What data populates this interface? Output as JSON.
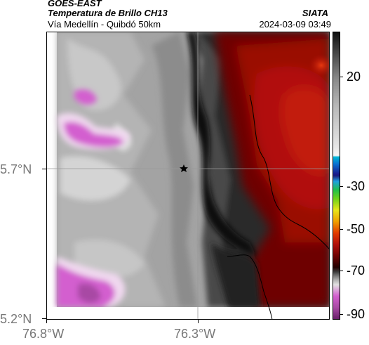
{
  "header": {
    "source": "GOES-EAST",
    "product": "Temperatura de Brillo CH13",
    "region": "Vía Medellín - Quibdó 50km",
    "organization": "SIATA",
    "timestamp": "2024-03-09 03:49"
  },
  "map": {
    "lat_labels": [
      "5.7°N",
      "5.2°N"
    ],
    "lon_labels": [
      "76.8°W",
      "76.3°W"
    ],
    "marker_icon": "star-icon"
  },
  "colorbar": {
    "labels": [
      "20",
      "-30",
      "-50",
      "-70",
      "-90"
    ]
  },
  "colors": {
    "warm_gray": "#a9a9a9",
    "cold_red": "#b10f0a",
    "deep_red": "#6e0202",
    "pink": "#d35fcf"
  }
}
